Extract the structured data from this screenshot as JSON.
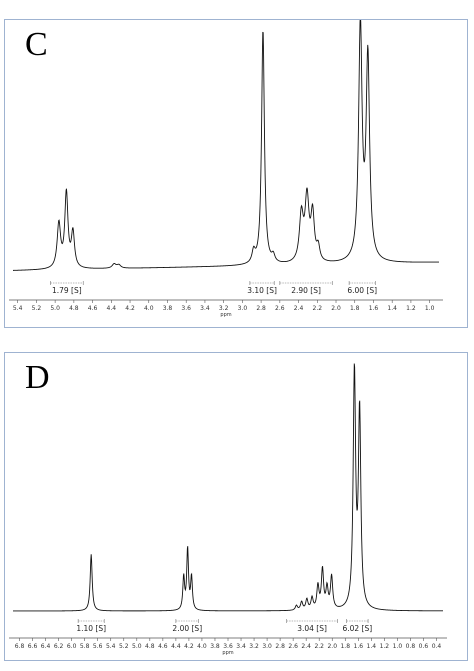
{
  "chart_data": [
    {
      "type": "line",
      "panel_label": "C",
      "xlabel": "ppm",
      "x_reversed": true,
      "xlim": [
        5.45,
        0.9
      ],
      "ticks": [
        5.4,
        5.2,
        5.0,
        4.8,
        4.6,
        4.4,
        4.2,
        4.0,
        3.8,
        3.6,
        3.4,
        3.2,
        3.0,
        2.8,
        2.6,
        2.4,
        2.2,
        2.0,
        1.8,
        1.6,
        1.4,
        1.2,
        1.0
      ],
      "tick_labels": [
        "5.4",
        "5.2",
        "5.0",
        "4.8",
        "4.6",
        "4.4",
        "4.2",
        "4.0",
        "3.8",
        "3.6",
        "3.4",
        "3.2",
        "3.0",
        "2.8",
        "2.6",
        "2.4",
        "2.2",
        "2.0",
        "1.8",
        "1.6",
        "1.4",
        "1.2",
        "1.0"
      ],
      "baseline_start": 0.01,
      "baseline_end": 0.045,
      "peaks": [
        {
          "x": 4.96,
          "h": 0.19,
          "w": 0.022
        },
        {
          "x": 4.88,
          "h": 0.32,
          "w": 0.02
        },
        {
          "x": 4.81,
          "h": 0.15,
          "w": 0.02
        },
        {
          "x": 4.37,
          "h": 0.018,
          "w": 0.025
        },
        {
          "x": 4.32,
          "h": 0.014,
          "w": 0.025
        },
        {
          "x": 2.88,
          "h": 0.05,
          "w": 0.02
        },
        {
          "x": 2.78,
          "h": 1.0,
          "w": 0.018
        },
        {
          "x": 2.67,
          "h": 0.03,
          "w": 0.02
        },
        {
          "x": 2.37,
          "h": 0.2,
          "w": 0.025
        },
        {
          "x": 2.31,
          "h": 0.27,
          "w": 0.025
        },
        {
          "x": 2.25,
          "h": 0.2,
          "w": 0.022
        },
        {
          "x": 2.19,
          "h": 0.06,
          "w": 0.02
        },
        {
          "x": 1.74,
          "h": 1.0,
          "w": 0.022
        },
        {
          "x": 1.66,
          "h": 0.86,
          "w": 0.022
        }
      ],
      "integrals": [
        {
          "label": "1.79 [S]",
          "from": 5.05,
          "to": 4.7
        },
        {
          "label": "3.10 [S]",
          "from": 2.92,
          "to": 2.66
        },
        {
          "label": "2.90 [S]",
          "from": 2.6,
          "to": 2.04
        },
        {
          "label": "6.00 [S]",
          "from": 1.86,
          "to": 1.58
        }
      ]
    },
    {
      "type": "line",
      "panel_label": "D",
      "xlabel": "ppm",
      "x_reversed": true,
      "xlim": [
        6.9,
        0.3
      ],
      "ticks": [
        6.8,
        6.6,
        6.4,
        6.2,
        6.0,
        5.8,
        5.6,
        5.4,
        5.2,
        5.0,
        4.8,
        4.6,
        4.4,
        4.2,
        4.0,
        3.8,
        3.6,
        3.4,
        3.2,
        3.0,
        2.8,
        2.6,
        2.4,
        2.2,
        2.0,
        1.8,
        1.6,
        1.4,
        1.2,
        1.0,
        0.8,
        0.6,
        0.4
      ],
      "tick_labels": [
        "6.8",
        "6.6",
        "6.4",
        "6.2",
        "6.0",
        "5.8",
        "5.6",
        "5.4",
        "5.2",
        "5.0",
        "4.8",
        "4.6",
        "4.4",
        "4.2",
        "4.0",
        "3.8",
        "3.6",
        "3.4",
        "3.2",
        "3.0",
        "2.8",
        "2.6",
        "2.4",
        "2.2",
        "2.0",
        "1.8",
        "1.6",
        "1.4",
        "1.2",
        "1.0",
        "0.8",
        "0.6",
        "0.4"
      ],
      "baseline_start": 0.0,
      "baseline_end": 0.0,
      "peaks": [
        {
          "x": 5.7,
          "h": 0.24,
          "w": 0.018
        },
        {
          "x": 4.28,
          "h": 0.14,
          "w": 0.016
        },
        {
          "x": 4.22,
          "h": 0.26,
          "w": 0.016
        },
        {
          "x": 4.16,
          "h": 0.14,
          "w": 0.016
        },
        {
          "x": 2.55,
          "h": 0.02,
          "w": 0.02
        },
        {
          "x": 2.47,
          "h": 0.035,
          "w": 0.02
        },
        {
          "x": 2.39,
          "h": 0.045,
          "w": 0.02
        },
        {
          "x": 2.31,
          "h": 0.05,
          "w": 0.02
        },
        {
          "x": 2.22,
          "h": 0.1,
          "w": 0.02
        },
        {
          "x": 2.15,
          "h": 0.17,
          "w": 0.02
        },
        {
          "x": 2.08,
          "h": 0.09,
          "w": 0.02
        },
        {
          "x": 2.01,
          "h": 0.14,
          "w": 0.02
        },
        {
          "x": 1.66,
          "h": 1.0,
          "w": 0.022
        },
        {
          "x": 1.58,
          "h": 0.83,
          "w": 0.022
        }
      ],
      "integrals": [
        {
          "label": "1.10 [S]",
          "from": 5.9,
          "to": 5.5
        },
        {
          "label": "2.00 [S]",
          "from": 4.4,
          "to": 4.05
        },
        {
          "label": "3.04 [S]",
          "from": 2.7,
          "to": 1.92
        },
        {
          "label": "6.02 [S]",
          "from": 1.78,
          "to": 1.45
        }
      ]
    }
  ]
}
